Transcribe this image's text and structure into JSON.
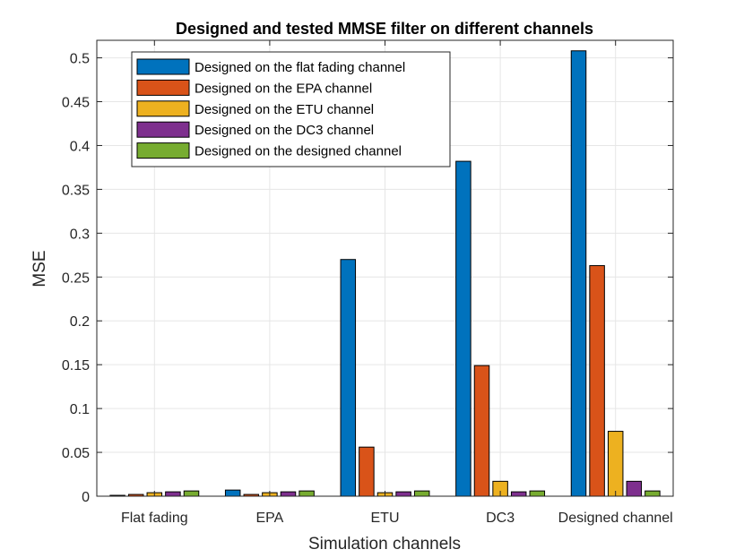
{
  "chart_data": {
    "type": "bar",
    "title": "Designed and tested MMSE filter on different channels",
    "xlabel": "Simulation channels",
    "ylabel": "MSE",
    "ylim": [
      0,
      0.52
    ],
    "yticks": [
      0,
      0.05,
      0.1,
      0.15,
      0.2,
      0.25,
      0.3,
      0.35,
      0.4,
      0.45,
      0.5
    ],
    "ytick_labels": [
      "0",
      "0.05",
      "0.1",
      "0.15",
      "0.2",
      "0.25",
      "0.3",
      "0.35",
      "0.4",
      "0.45",
      "0.5"
    ],
    "grid": true,
    "legend_position": "top-left",
    "categories": [
      "Flat fading",
      "EPA",
      "ETU",
      "DC3",
      "Designed channel"
    ],
    "series": [
      {
        "name": "Designed on the flat fading channel",
        "color": "#0072BD",
        "values": [
          0.001,
          0.007,
          0.27,
          0.382,
          0.508
        ]
      },
      {
        "name": "Designed on the EPA channel",
        "color": "#D95319",
        "values": [
          0.002,
          0.002,
          0.056,
          0.149,
          0.263
        ]
      },
      {
        "name": "Designed on the ETU channel",
        "color": "#EDB120",
        "values": [
          0.004,
          0.004,
          0.004,
          0.017,
          0.074
        ]
      },
      {
        "name": "Designed on the DC3 channel",
        "color": "#7E2F8E",
        "values": [
          0.005,
          0.005,
          0.005,
          0.005,
          0.017
        ]
      },
      {
        "name": "Designed on the designed channel",
        "color": "#77AC30",
        "values": [
          0.006,
          0.006,
          0.006,
          0.006,
          0.006
        ]
      }
    ]
  }
}
